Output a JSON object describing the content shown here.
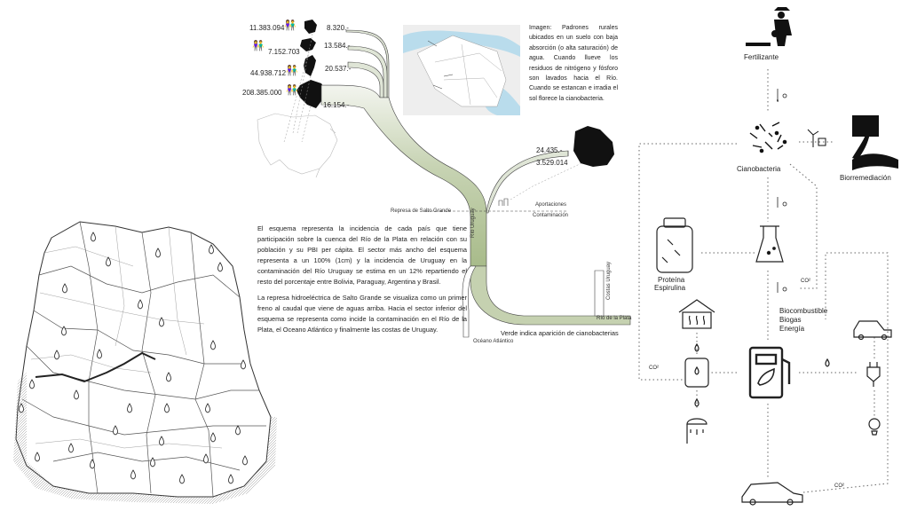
{
  "countries": [
    {
      "population": "11.383.094",
      "gdp": "8.320.-"
    },
    {
      "population": "7.152.703",
      "gdp": "13.584.-"
    },
    {
      "population": "44.938.712",
      "gdp": "20.537.-"
    },
    {
      "population": "208.385.000",
      "gdp": "16.154.-"
    }
  ],
  "uruguay": {
    "gdp": "24.435.-",
    "population": "3.529.014"
  },
  "image_caption": "Imagen: Padrones rurales ubicados en un suelo con baja absorción (o alta saturación) de agua. Cuando llueve los residuos de nitrógeno y fósforo son lavados hacia el Río. Cuando se estancan e irradia el sol florece la cianobacteria.",
  "dam_label": "Represa de Salto Grande",
  "aportaciones": "Aportaciones",
  "contaminacion": "Contaminación",
  "rio_uruguay": "Río Uruguay",
  "rio_plata": "Río de la Plata",
  "costas_uruguay": "Costas Uruguay",
  "oceano": "Océano Atlántico",
  "legend_green": "Verde indica aparición de cianobacterias",
  "para1": "El esquema representa la incidencia de cada país que tiene participación sobre la cuenca del Río de la Plata en relación con su población y su PBI per cápita. El sector más ancho del esquema representa a un 100% (1cm) y la incidencia de Uruguay en la contaminación del Río Uruguay se estima en un 12% repartiendo el resto del porcentaje entre Bolivia, Paraguay, Argentina y Brasil.",
  "para2": "La represa hidroeléctrica de Salto Grande se visualiza como un primer freno al caudal que viene de aguas arriba. Hacia el sector inferior del esquema se representa como incide la contaminación en el Río de la Plata, el Oceano Atlántico y finalmente las costas de Uruguay.",
  "cycle": {
    "fertilizante": "Fertilizante",
    "cianobacteria": "Cianobacteria",
    "biorremediacion": "Biorremediación",
    "proteina": "Proteína",
    "espirulina": "Espirulina",
    "biocombustible": "Biocombustible",
    "biogas": "Biogas",
    "energia": "Energía",
    "co2": "CO²"
  },
  "colors": {
    "river": "#d9e1cf",
    "river_green": "#b6c79c",
    "line": "#222222",
    "dotted": "#555555"
  }
}
